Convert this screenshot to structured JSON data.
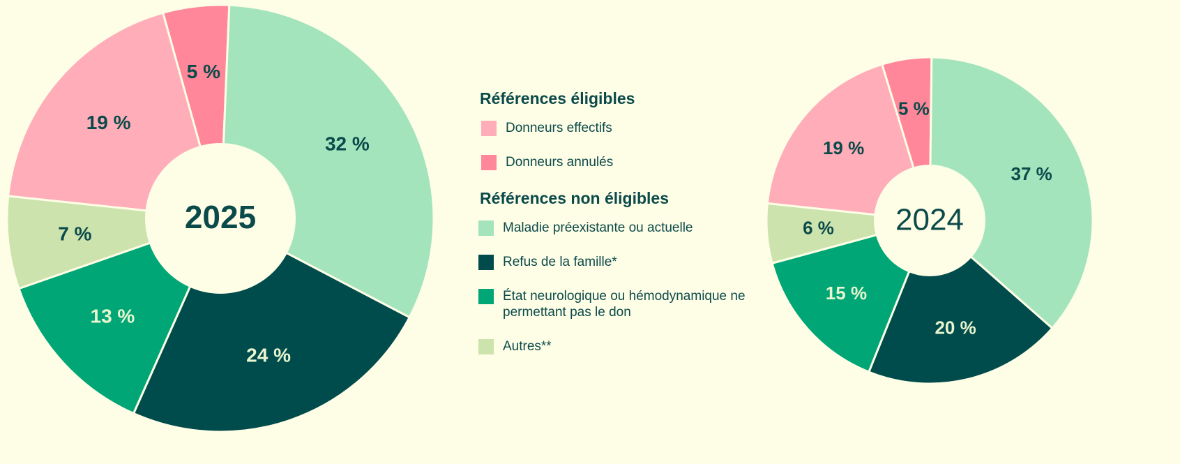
{
  "chart_data": [
    {
      "type": "pie",
      "title": "2025",
      "categories": [
        "Donneurs effectifs",
        "Donneurs annulés",
        "Maladie préexistante ou actuelle",
        "Refus de la famille*",
        "État neurologique ou hémodynamique ne permettant pas le don",
        "Autres**"
      ],
      "values": [
        19,
        5,
        32,
        24,
        13,
        7
      ],
      "value_labels": [
        "19 %",
        "5 %",
        "32 %",
        "24 %",
        "13 %",
        "7 %"
      ],
      "colors": [
        "#ffadb8",
        "#ff8799",
        "#a3e4bd",
        "#004b4b",
        "#00a676",
        "#cce3ad"
      ]
    },
    {
      "type": "pie",
      "title": "2024",
      "categories": [
        "Donneurs effectifs",
        "Donneurs annulés",
        "Maladie préexistante ou actuelle",
        "Refus de la famille*",
        "État neurologique ou hémodynamique ne permettant pas le don",
        "Autres**"
      ],
      "values": [
        19,
        5,
        37,
        20,
        15,
        6
      ],
      "value_labels": [
        "19 %",
        "5 %",
        "37 %",
        "20 %",
        "15 %",
        "6 %"
      ],
      "colors": [
        "#ffadb8",
        "#ff8799",
        "#a3e4bd",
        "#004b4b",
        "#00a676",
        "#cce3ad"
      ]
    }
  ],
  "legend_groups": [
    {
      "title": "Références éligibles"
    },
    {
      "title": "Références non éligibles"
    }
  ]
}
